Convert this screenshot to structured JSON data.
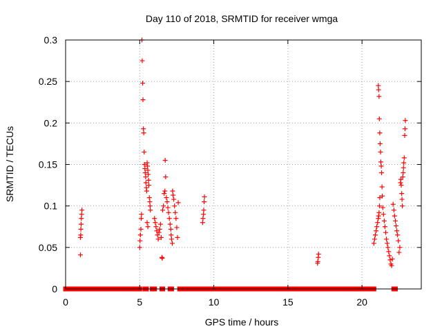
{
  "chart_data": {
    "type": "scatter",
    "title": "Day 110 of 2018, SRMTID for receiver wmga",
    "xlabel": "GPS time / hours",
    "ylabel": "SRMTID / TECUs",
    "xlim": [
      0,
      24
    ],
    "ylim": [
      0,
      0.3
    ],
    "xticks": [
      0,
      5,
      10,
      15,
      20
    ],
    "xtick_labels": [
      "0",
      "5",
      "10",
      "15",
      "20"
    ],
    "yticks": [
      0,
      0.05,
      0.1,
      0.15,
      0.2,
      0.25,
      0.3
    ],
    "ytick_labels": [
      "0",
      "0.05",
      "0.1",
      "0.15",
      "0.2",
      "0.25",
      "0.3"
    ],
    "grid": true,
    "marker": "+",
    "series": [
      {
        "name": "SRMTID",
        "color": "#ff0000",
        "points": [
          [
            1.0,
            0.041
          ],
          [
            1.0,
            0.062
          ],
          [
            1.02,
            0.065
          ],
          [
            1.03,
            0.072
          ],
          [
            1.05,
            0.078
          ],
          [
            1.06,
            0.085
          ],
          [
            1.08,
            0.09
          ],
          [
            1.1,
            0.095
          ],
          [
            5.0,
            0.05
          ],
          [
            5.02,
            0.058
          ],
          [
            5.05,
            0.065
          ],
          [
            5.08,
            0.072
          ],
          [
            5.1,
            0.085
          ],
          [
            5.12,
            0.09
          ],
          [
            5.15,
            0.3
          ],
          [
            5.17,
            0.275
          ],
          [
            5.2,
            0.248
          ],
          [
            5.22,
            0.228
          ],
          [
            5.25,
            0.193
          ],
          [
            5.27,
            0.188
          ],
          [
            5.3,
            0.165
          ],
          [
            5.32,
            0.15
          ],
          [
            5.35,
            0.145
          ],
          [
            5.37,
            0.14
          ],
          [
            5.4,
            0.135
          ],
          [
            5.42,
            0.128
          ],
          [
            5.45,
            0.122
          ],
          [
            5.47,
            0.118
          ],
          [
            5.5,
            0.152
          ],
          [
            5.52,
            0.148
          ],
          [
            5.55,
            0.143
          ],
          [
            5.57,
            0.138
          ],
          [
            5.6,
            0.131
          ],
          [
            5.62,
            0.125
          ],
          [
            5.65,
            0.11
          ],
          [
            5.68,
            0.105
          ],
          [
            5.7,
            0.1
          ],
          [
            5.72,
            0.095
          ],
          [
            5.5,
            0.08
          ],
          [
            5.55,
            0.075
          ],
          [
            6.0,
            0.085
          ],
          [
            6.05,
            0.08
          ],
          [
            6.1,
            0.075
          ],
          [
            6.15,
            0.07
          ],
          [
            6.2,
            0.065
          ],
          [
            6.25,
            0.06
          ],
          [
            6.3,
            0.068
          ],
          [
            6.35,
            0.072
          ],
          [
            6.4,
            0.078
          ],
          [
            6.45,
            0.062
          ],
          [
            6.5,
            0.038
          ],
          [
            6.52,
            0.037
          ],
          [
            6.55,
            0.095
          ],
          [
            6.6,
            0.1
          ],
          [
            6.65,
            0.115
          ],
          [
            6.7,
            0.118
          ],
          [
            6.72,
            0.155
          ],
          [
            6.75,
            0.135
          ],
          [
            6.8,
            0.11
          ],
          [
            6.85,
            0.105
          ],
          [
            6.9,
            0.098
          ],
          [
            6.95,
            0.092
          ],
          [
            7.0,
            0.085
          ],
          [
            7.05,
            0.078
          ],
          [
            7.1,
            0.072
          ],
          [
            7.12,
            0.065
          ],
          [
            7.15,
            0.06
          ],
          [
            7.2,
            0.055
          ],
          [
            7.22,
            0.118
          ],
          [
            7.25,
            0.113
          ],
          [
            7.3,
            0.108
          ],
          [
            7.35,
            0.1
          ],
          [
            7.4,
            0.092
          ],
          [
            7.45,
            0.085
          ],
          [
            7.5,
            0.074
          ],
          [
            7.55,
            0.062
          ],
          [
            7.6,
            0.104
          ],
          [
            9.25,
            0.08
          ],
          [
            9.27,
            0.085
          ],
          [
            9.3,
            0.09
          ],
          [
            9.32,
            0.095
          ],
          [
            9.35,
            0.105
          ],
          [
            9.37,
            0.111
          ],
          [
            17.0,
            0.031
          ],
          [
            17.02,
            0.033
          ],
          [
            17.05,
            0.038
          ],
          [
            17.07,
            0.042
          ],
          [
            20.8,
            0.055
          ],
          [
            20.85,
            0.06
          ],
          [
            20.9,
            0.065
          ],
          [
            20.95,
            0.07
          ],
          [
            21.0,
            0.075
          ],
          [
            21.05,
            0.08
          ],
          [
            21.1,
            0.085
          ],
          [
            21.12,
            0.088
          ],
          [
            21.15,
            0.092
          ],
          [
            21.18,
            0.1
          ],
          [
            21.2,
            0.11
          ],
          [
            21.1,
            0.245
          ],
          [
            21.12,
            0.24
          ],
          [
            21.15,
            0.232
          ],
          [
            21.17,
            0.205
          ],
          [
            21.2,
            0.188
          ],
          [
            21.22,
            0.175
          ],
          [
            21.25,
            0.165
          ],
          [
            21.27,
            0.153
          ],
          [
            21.3,
            0.148
          ],
          [
            21.32,
            0.14
          ],
          [
            21.35,
            0.123
          ],
          [
            21.37,
            0.112
          ],
          [
            21.4,
            0.098
          ],
          [
            21.45,
            0.09
          ],
          [
            21.5,
            0.082
          ],
          [
            21.55,
            0.075
          ],
          [
            21.6,
            0.068
          ],
          [
            21.65,
            0.06
          ],
          [
            21.7,
            0.055
          ],
          [
            21.75,
            0.05
          ],
          [
            21.8,
            0.045
          ],
          [
            21.85,
            0.04
          ],
          [
            21.9,
            0.035
          ],
          [
            21.95,
            0.03
          ],
          [
            22.0,
            0.028
          ],
          [
            22.05,
            0.036
          ],
          [
            22.1,
            0.102
          ],
          [
            22.15,
            0.095
          ],
          [
            22.2,
            0.088
          ],
          [
            22.25,
            0.082
          ],
          [
            22.3,
            0.076
          ],
          [
            22.35,
            0.07
          ],
          [
            22.4,
            0.065
          ],
          [
            22.45,
            0.058
          ],
          [
            22.5,
            0.044
          ],
          [
            22.55,
            0.05
          ],
          [
            22.6,
            0.128
          ],
          [
            22.62,
            0.132
          ],
          [
            22.65,
            0.125
          ],
          [
            22.68,
            0.115
          ],
          [
            22.7,
            0.108
          ],
          [
            22.72,
            0.1
          ],
          [
            22.75,
            0.135
          ],
          [
            22.78,
            0.14
          ],
          [
            22.8,
            0.146
          ],
          [
            22.82,
            0.152
          ],
          [
            22.85,
            0.158
          ],
          [
            22.88,
            0.185
          ],
          [
            22.9,
            0.193
          ],
          [
            22.92,
            0.203
          ]
        ],
        "zero_segments": [
          [
            0.0,
            5.0
          ],
          [
            5.35,
            5.45
          ],
          [
            5.85,
            6.0
          ],
          [
            6.5,
            6.55
          ],
          [
            7.05,
            7.15
          ],
          [
            7.7,
            20.8
          ],
          [
            22.15,
            22.25
          ]
        ]
      }
    ]
  }
}
